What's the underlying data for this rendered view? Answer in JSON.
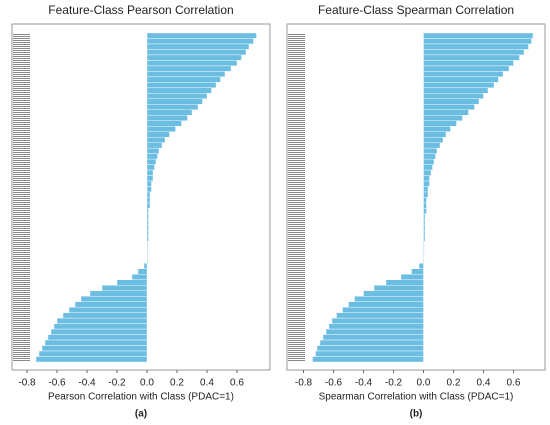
{
  "chart_data": [
    {
      "type": "barh",
      "title": "Feature-Class Pearson Correlation",
      "xlabel": "Pearson Correlation with Class (PDAC=1)",
      "panel": "(a)",
      "color": "#6cbde2",
      "xlim": [
        -0.9,
        0.82
      ],
      "xticks": [
        -0.8,
        -0.6,
        -0.4,
        -0.2,
        {
          "value": 0,
          "label": "0.0"
        },
        0.2,
        0.4,
        0.6
      ],
      "values": [
        0.73,
        0.71,
        0.68,
        0.66,
        0.63,
        0.6,
        0.56,
        0.52,
        0.49,
        0.46,
        0.43,
        0.4,
        0.37,
        0.34,
        0.3,
        0.27,
        0.23,
        0.19,
        0.15,
        0.12,
        0.1,
        0.08,
        0.07,
        0.06,
        0.05,
        0.04,
        0.04,
        0.03,
        0.03,
        0.02,
        0.02,
        0.02,
        0.01,
        0.01,
        0.01,
        0.01,
        0.01,
        0.01,
        0.005,
        0.005,
        0.005,
        0.005,
        -0.02,
        -0.06,
        -0.1,
        -0.2,
        -0.3,
        -0.38,
        -0.44,
        -0.48,
        -0.52,
        -0.56,
        -0.6,
        -0.62,
        -0.64,
        -0.66,
        -0.68,
        -0.7,
        -0.72,
        -0.74
      ]
    },
    {
      "type": "barh",
      "title": "Feature-Class Spearman Correlation",
      "xlabel": "Spearman  Correlation with Class (PDAC=1)",
      "panel": "(b)",
      "color": "#6cbde2",
      "xlim": [
        -0.91,
        0.81
      ],
      "xticks": [
        -0.8,
        -0.6,
        -0.4,
        -0.2,
        {
          "value": 0,
          "label": "0.0"
        },
        0.2,
        0.4,
        0.6
      ],
      "values": [
        0.73,
        0.72,
        0.7,
        0.67,
        0.64,
        0.6,
        0.57,
        0.53,
        0.5,
        0.47,
        0.43,
        0.4,
        0.37,
        0.34,
        0.3,
        0.26,
        0.22,
        0.18,
        0.15,
        0.13,
        0.11,
        0.09,
        0.08,
        0.07,
        0.06,
        0.05,
        0.04,
        0.04,
        0.03,
        0.03,
        0.02,
        0.02,
        0.02,
        0.01,
        0.01,
        0.01,
        0.01,
        0.01,
        0.005,
        0.005,
        0.005,
        0.005,
        -0.03,
        -0.08,
        -0.15,
        -0.25,
        -0.33,
        -0.4,
        -0.46,
        -0.5,
        -0.54,
        -0.58,
        -0.61,
        -0.63,
        -0.65,
        -0.67,
        -0.69,
        -0.71,
        -0.72,
        -0.74
      ]
    }
  ]
}
